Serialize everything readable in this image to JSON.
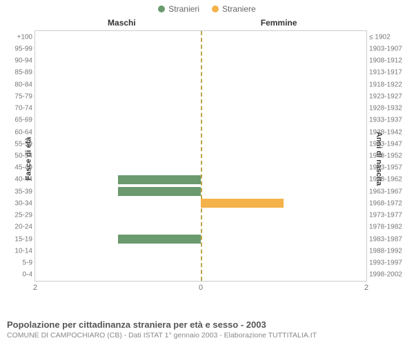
{
  "legend": {
    "male": {
      "label": "Stranieri",
      "color": "#6a9a6d"
    },
    "female": {
      "label": "Straniere",
      "color": "#f4b24a"
    }
  },
  "titles": {
    "left_half": "Maschi",
    "right_half": "Femmine",
    "left_axis": "Fasce di età",
    "right_axis": "Anni di nascita"
  },
  "chart": {
    "type": "population-pyramid",
    "xlim": [
      0,
      2
    ],
    "xticks_left": [
      "2",
      "0"
    ],
    "xticks_right": [
      "0",
      "2"
    ],
    "center_line_color": "#bba64a",
    "grid_color": "#cccccc",
    "row_height_pct": 4.76,
    "bar_fill_ratio": 0.75,
    "rows": [
      {
        "age": "100+",
        "birth": "≤ 1902",
        "m": 0,
        "f": 0
      },
      {
        "age": "95-99",
        "birth": "1903-1907",
        "m": 0,
        "f": 0
      },
      {
        "age": "90-94",
        "birth": "1908-1912",
        "m": 0,
        "f": 0
      },
      {
        "age": "85-89",
        "birth": "1913-1917",
        "m": 0,
        "f": 0
      },
      {
        "age": "80-84",
        "birth": "1918-1922",
        "m": 0,
        "f": 0
      },
      {
        "age": "75-79",
        "birth": "1923-1927",
        "m": 0,
        "f": 0
      },
      {
        "age": "70-74",
        "birth": "1928-1932",
        "m": 0,
        "f": 0
      },
      {
        "age": "65-69",
        "birth": "1933-1937",
        "m": 0,
        "f": 0
      },
      {
        "age": "60-64",
        "birth": "1938-1942",
        "m": 0,
        "f": 0
      },
      {
        "age": "55-59",
        "birth": "1943-1947",
        "m": 0,
        "f": 0
      },
      {
        "age": "50-54",
        "birth": "1948-1952",
        "m": 0,
        "f": 0
      },
      {
        "age": "45-49",
        "birth": "1953-1957",
        "m": 0,
        "f": 0
      },
      {
        "age": "40-44",
        "birth": "1958-1962",
        "m": 1,
        "f": 0
      },
      {
        "age": "35-39",
        "birth": "1963-1967",
        "m": 1,
        "f": 0
      },
      {
        "age": "30-34",
        "birth": "1968-1972",
        "m": 0,
        "f": 1
      },
      {
        "age": "25-29",
        "birth": "1973-1977",
        "m": 0,
        "f": 0
      },
      {
        "age": "20-24",
        "birth": "1978-1982",
        "m": 0,
        "f": 0
      },
      {
        "age": "15-19",
        "birth": "1983-1987",
        "m": 1,
        "f": 0
      },
      {
        "age": "10-14",
        "birth": "1988-1992",
        "m": 0,
        "f": 0
      },
      {
        "age": "5-9",
        "birth": "1993-1997",
        "m": 0,
        "f": 0
      },
      {
        "age": "0-4",
        "birth": "1998-2002",
        "m": 0,
        "f": 0
      }
    ]
  },
  "footer": {
    "title": "Popolazione per cittadinanza straniera per età e sesso - 2003",
    "subtitle": "COMUNE DI CAMPOCHIARO (CB) - Dati ISTAT 1° gennaio 2003 - Elaborazione TUTTITALIA.IT"
  }
}
